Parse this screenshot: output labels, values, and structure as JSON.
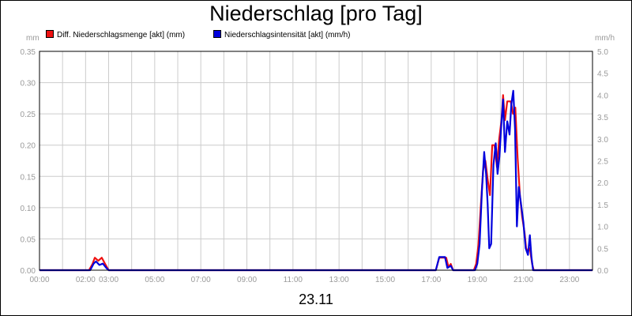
{
  "chart_data": {
    "type": "line",
    "title": "Niederschlag [pro Tag]",
    "date_label": "23.11",
    "y_left_unit": "mm",
    "y_right_unit": "mm/h",
    "x_ticks": [
      "00:00",
      "02:00",
      "03:00",
      "05:00",
      "07:00",
      "09:00",
      "11:00",
      "13:00",
      "15:00",
      "17:00",
      "19:00",
      "21:00",
      "23:00"
    ],
    "x_range_hours": [
      0,
      24
    ],
    "y_left_ticks": [
      "0.00",
      "0.05",
      "0.10",
      "0.15",
      "0.20",
      "0.25",
      "0.30",
      "0.35"
    ],
    "y_left_range": [
      0,
      0.35
    ],
    "y_right_ticks": [
      "0.0",
      "0.5",
      "1.0",
      "1.5",
      "2.0",
      "2.5",
      "3.0",
      "3.5",
      "4.0",
      "4.5",
      "5.0"
    ],
    "y_right_range": [
      0,
      5.0
    ],
    "grid": true,
    "legend_position": "top",
    "series": [
      {
        "name": "Diff. Niederschlagsmenge [akt] (mm)",
        "color": "#ee1111",
        "axis": "left",
        "points": [
          [
            0,
            0
          ],
          [
            2.15,
            0
          ],
          [
            2.3,
            0.01
          ],
          [
            2.4,
            0.02
          ],
          [
            2.55,
            0.015
          ],
          [
            2.7,
            0.02
          ],
          [
            2.85,
            0.01
          ],
          [
            3.0,
            0
          ],
          [
            17.2,
            0
          ],
          [
            17.35,
            0.02
          ],
          [
            17.65,
            0.02
          ],
          [
            17.75,
            0.005
          ],
          [
            17.85,
            0.01
          ],
          [
            17.95,
            0
          ],
          [
            18.85,
            0
          ],
          [
            18.95,
            0.01
          ],
          [
            19.05,
            0.04
          ],
          [
            19.15,
            0.1
          ],
          [
            19.25,
            0.16
          ],
          [
            19.35,
            0.175
          ],
          [
            19.45,
            0.145
          ],
          [
            19.55,
            0.12
          ],
          [
            19.65,
            0.2
          ],
          [
            19.75,
            0.2
          ],
          [
            19.85,
            0.165
          ],
          [
            19.95,
            0.21
          ],
          [
            20.05,
            0.24
          ],
          [
            20.12,
            0.28
          ],
          [
            20.2,
            0.24
          ],
          [
            20.3,
            0.27
          ],
          [
            20.45,
            0.27
          ],
          [
            20.55,
            0.25
          ],
          [
            20.65,
            0.26
          ],
          [
            20.75,
            0.18
          ],
          [
            20.85,
            0.12
          ],
          [
            20.95,
            0.085
          ],
          [
            21.05,
            0.06
          ],
          [
            21.12,
            0.035
          ],
          [
            21.2,
            0.03
          ],
          [
            21.28,
            0.035
          ],
          [
            21.38,
            0.01
          ],
          [
            21.45,
            0
          ]
        ]
      },
      {
        "name": "Niederschlagsintensität [akt] (mm/h)",
        "color": "#0000dd",
        "axis": "right",
        "points": [
          [
            0,
            0
          ],
          [
            2.2,
            0
          ],
          [
            2.35,
            0.15
          ],
          [
            2.45,
            0.2
          ],
          [
            2.6,
            0.12
          ],
          [
            2.75,
            0.15
          ],
          [
            2.9,
            0.05
          ],
          [
            3.0,
            0
          ],
          [
            17.2,
            0
          ],
          [
            17.35,
            0.3
          ],
          [
            17.6,
            0.3
          ],
          [
            17.7,
            0.05
          ],
          [
            17.85,
            0.1
          ],
          [
            17.95,
            0
          ],
          [
            18.9,
            0
          ],
          [
            19.0,
            0.15
          ],
          [
            19.1,
            0.6
          ],
          [
            19.2,
            1.8
          ],
          [
            19.3,
            2.7
          ],
          [
            19.38,
            2.2
          ],
          [
            19.45,
            1.5
          ],
          [
            19.52,
            0.5
          ],
          [
            19.6,
            0.6
          ],
          [
            19.7,
            2.4
          ],
          [
            19.8,
            2.9
          ],
          [
            19.88,
            2.2
          ],
          [
            19.96,
            2.6
          ],
          [
            20.04,
            3.3
          ],
          [
            20.12,
            3.9
          ],
          [
            20.2,
            2.7
          ],
          [
            20.3,
            3.4
          ],
          [
            20.4,
            3.1
          ],
          [
            20.48,
            3.8
          ],
          [
            20.56,
            4.1
          ],
          [
            20.64,
            3.2
          ],
          [
            20.72,
            1.0
          ],
          [
            20.8,
            1.9
          ],
          [
            20.9,
            1.5
          ],
          [
            21.0,
            1.1
          ],
          [
            21.1,
            0.5
          ],
          [
            21.2,
            0.35
          ],
          [
            21.28,
            0.8
          ],
          [
            21.35,
            0.3
          ],
          [
            21.42,
            0
          ]
        ]
      }
    ]
  }
}
